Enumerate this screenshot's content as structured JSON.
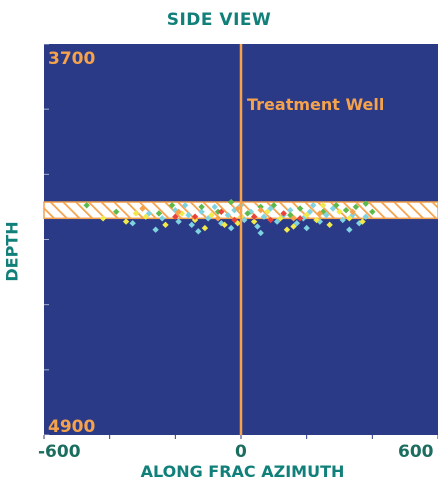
{
  "colors": {
    "background": "#2a3a87",
    "accent": "#f5a24b",
    "title": "#12807a",
    "tick_labels_x": "#1a6d5f"
  },
  "chart_data": {
    "type": "scatter",
    "title": "SIDE VIEW",
    "xlabel": "ALONG FRAC AZIMUTH",
    "ylabel": "DEPTH",
    "xlim": [
      -600,
      600
    ],
    "ylim": [
      4900,
      3700
    ],
    "x_tick_labels": [
      "-600",
      "0",
      "600"
    ],
    "y_tick_labels": [
      "3700",
      "4900"
    ],
    "y_axis_inverted": true,
    "grid": false,
    "annotations": [
      {
        "text": "Treatment Well",
        "x": 0,
        "vertical_line": true
      }
    ],
    "bands": [
      {
        "description": "Hatched treatment interval",
        "y_from": 4185,
        "y_to": 4235,
        "pattern": "diagonal-hatch",
        "color": "#f5a24b"
      }
    ],
    "series": [
      {
        "color": "#7fd3e0",
        "points": [
          [
            -280,
            4220
          ],
          [
            -240,
            4235
          ],
          [
            -200,
            4210
          ],
          [
            -190,
            4245
          ],
          [
            -160,
            4225
          ],
          [
            -150,
            4255
          ],
          [
            -120,
            4215
          ],
          [
            -100,
            4235
          ],
          [
            -80,
            4200
          ],
          [
            -60,
            4250
          ],
          [
            -40,
            4225
          ],
          [
            -20,
            4210
          ],
          [
            10,
            4240
          ],
          [
            30,
            4215
          ],
          [
            50,
            4260
          ],
          [
            70,
            4230
          ],
          [
            90,
            4205
          ],
          [
            110,
            4245
          ],
          [
            130,
            4225
          ],
          [
            150,
            4210
          ],
          [
            170,
            4250
          ],
          [
            190,
            4235
          ],
          [
            210,
            4215
          ],
          [
            240,
            4245
          ],
          [
            260,
            4225
          ],
          [
            280,
            4205
          ],
          [
            310,
            4240
          ],
          [
            340,
            4225
          ],
          [
            360,
            4250
          ],
          [
            380,
            4230
          ],
          [
            -330,
            4250
          ],
          [
            -260,
            4270
          ],
          [
            -130,
            4275
          ],
          [
            -30,
            4265
          ],
          [
            60,
            4280
          ],
          [
            200,
            4265
          ],
          [
            330,
            4270
          ],
          [
            -170,
            4195
          ],
          [
            0,
            4195
          ],
          [
            220,
            4195
          ]
        ]
      },
      {
        "color": "#f2ea4a",
        "points": [
          [
            -420,
            4235
          ],
          [
            -350,
            4245
          ],
          [
            -290,
            4230
          ],
          [
            -230,
            4255
          ],
          [
            -180,
            4220
          ],
          [
            -140,
            4240
          ],
          [
            -90,
            4225
          ],
          [
            -50,
            4255
          ],
          [
            0,
            4230
          ],
          [
            40,
            4245
          ],
          [
            80,
            4215
          ],
          [
            120,
            4235
          ],
          [
            160,
            4260
          ],
          [
            200,
            4225
          ],
          [
            230,
            4240
          ],
          [
            270,
            4255
          ],
          [
            300,
            4215
          ],
          [
            330,
            4235
          ],
          [
            370,
            4245
          ],
          [
            -110,
            4265
          ],
          [
            -10,
            4250
          ],
          [
            140,
            4270
          ],
          [
            250,
            4195
          ],
          [
            -320,
            4220
          ]
        ]
      },
      {
        "color": "#5dba4a",
        "points": [
          [
            -470,
            4195
          ],
          [
            -380,
            4215
          ],
          [
            -250,
            4220
          ],
          [
            -210,
            4195
          ],
          [
            -120,
            4200
          ],
          [
            -70,
            4215
          ],
          [
            20,
            4220
          ],
          [
            100,
            4195
          ],
          [
            150,
            4225
          ],
          [
            180,
            4205
          ],
          [
            250,
            4215
          ],
          [
            290,
            4195
          ],
          [
            320,
            4210
          ],
          [
            350,
            4200
          ],
          [
            380,
            4190
          ],
          [
            400,
            4215
          ],
          [
            60,
            4200
          ],
          [
            -30,
            4185
          ]
        ]
      },
      {
        "color": "#e8433a",
        "points": [
          [
            -140,
            4230
          ],
          [
            -60,
            4215
          ],
          [
            -20,
            4240
          ],
          [
            40,
            4230
          ],
          [
            90,
            4240
          ],
          [
            130,
            4220
          ],
          [
            -200,
            4230
          ],
          [
            180,
            4235
          ]
        ]
      },
      {
        "color": "#f5a24b",
        "points": [
          [
            -300,
            4205
          ],
          [
            -190,
            4215
          ],
          [
            -70,
            4235
          ],
          [
            60,
            4210
          ],
          [
            160,
            4235
          ],
          [
            240,
            4220
          ],
          [
            340,
            4215
          ],
          [
            -10,
            4205
          ]
        ]
      }
    ]
  }
}
